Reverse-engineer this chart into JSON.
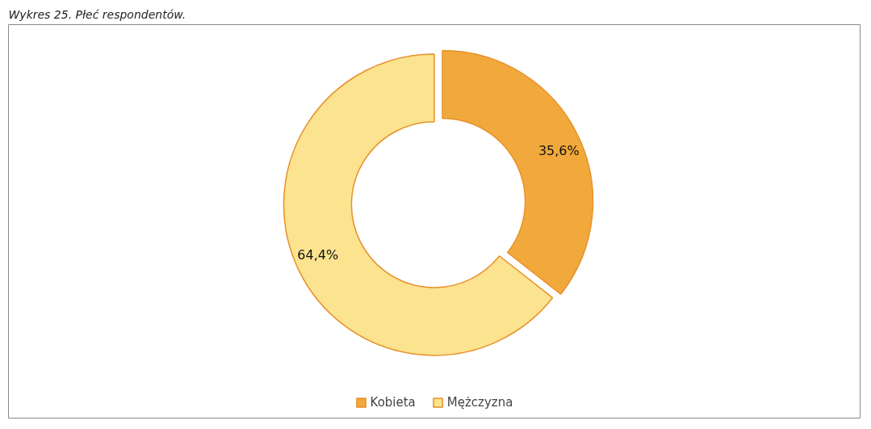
{
  "chart_data": {
    "type": "donut",
    "title": "Wykres 25. Płeć respondentów.",
    "categories": [
      "Kobieta",
      "Mężczyzna"
    ],
    "values": [
      35.6,
      64.4
    ],
    "colors": [
      "#f2a93b",
      "#fbe38f"
    ],
    "value_labels": [
      "35,6%",
      "64,4%"
    ],
    "legend": "bottom"
  }
}
